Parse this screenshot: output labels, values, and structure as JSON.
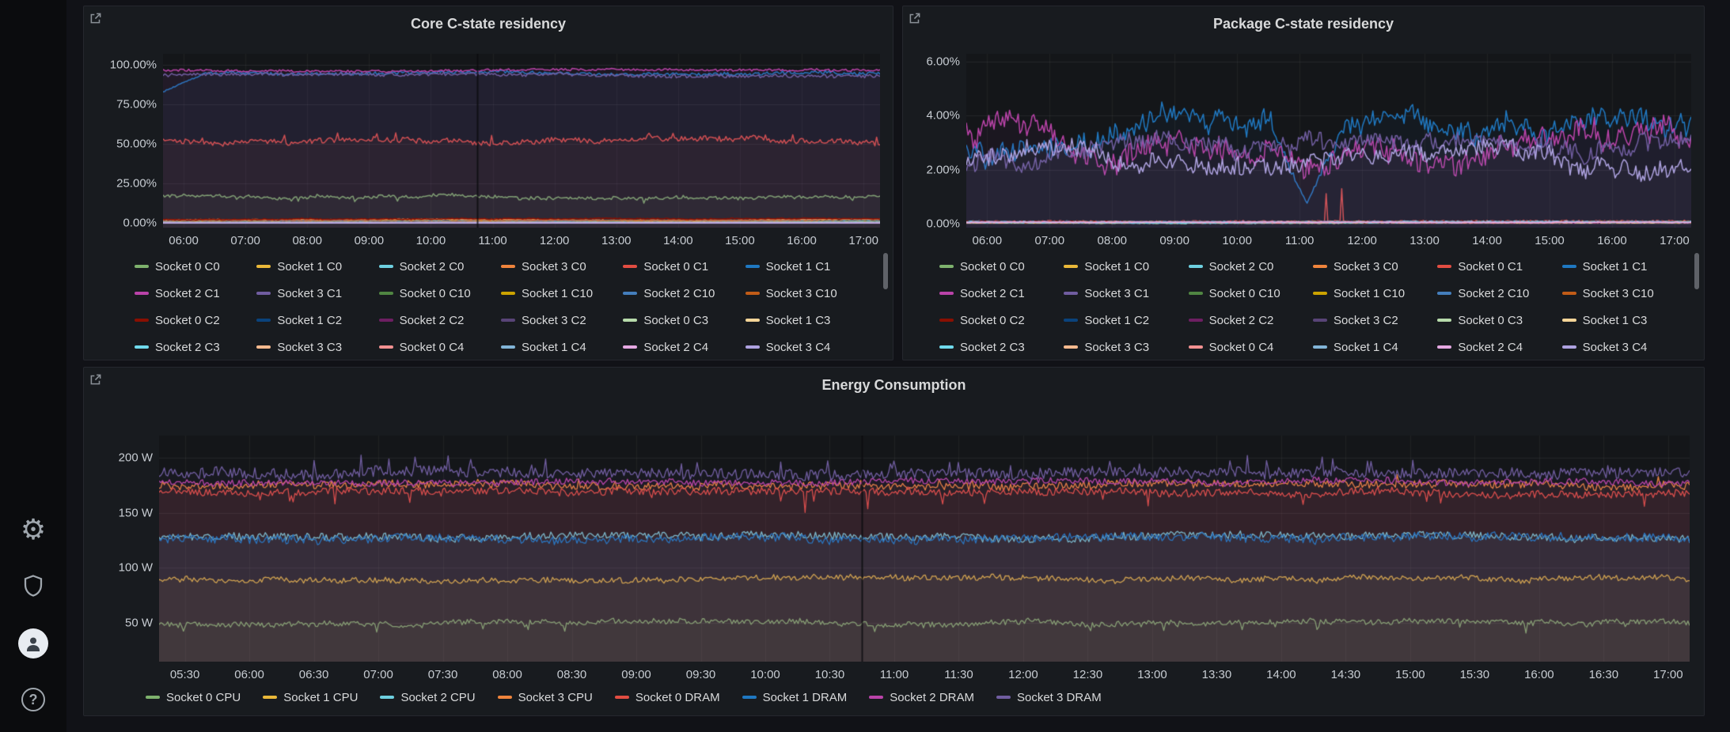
{
  "app": {
    "theme": {
      "page_bg": "#111217",
      "panel_bg": "#181b1f",
      "plot_bg": "#141619",
      "text": "#d8d9da",
      "tick_text": "#c7ccd2",
      "sidebar_bg": "#0b0c0e"
    }
  },
  "sidebar": {
    "items": [
      {
        "icon": "gear-icon",
        "label": "settings"
      },
      {
        "icon": "shield-icon",
        "label": "security"
      },
      {
        "icon": "avatar-icon",
        "label": "profile"
      },
      {
        "icon": "help-icon",
        "label": "help"
      }
    ]
  },
  "chart_data": [
    {
      "id": "core",
      "type": "line",
      "title": "Core C-state residency",
      "legend_position": "bottom",
      "grid": true,
      "points": 420,
      "line_width": 1.5,
      "fill_alpha": 0.06,
      "walk_step": 0.2,
      "x_range_minutes": [
        340,
        1036
      ],
      "annotation_x_minutes": 645,
      "ylim": [
        -3,
        107
      ],
      "y_ticks": [
        {
          "v": 100,
          "label": "100.00%"
        },
        {
          "v": 75,
          "label": "75.00%"
        },
        {
          "v": 50,
          "label": "50.00%"
        },
        {
          "v": 25,
          "label": "25.00%"
        },
        {
          "v": 0,
          "label": "0.00%"
        }
      ],
      "x_ticks": [
        {
          "m": 360,
          "label": "06:00"
        },
        {
          "m": 420,
          "label": "07:00"
        },
        {
          "m": 480,
          "label": "08:00"
        },
        {
          "m": 540,
          "label": "09:00"
        },
        {
          "m": 600,
          "label": "10:00"
        },
        {
          "m": 660,
          "label": "11:00"
        },
        {
          "m": 720,
          "label": "12:00"
        },
        {
          "m": 780,
          "label": "13:00"
        },
        {
          "m": 840,
          "label": "14:00"
        },
        {
          "m": 900,
          "label": "15:00"
        },
        {
          "m": 960,
          "label": "16:00"
        },
        {
          "m": 1020,
          "label": "17:00"
        }
      ],
      "series": [
        {
          "name": "Socket 0 C0",
          "color": "#7EB26D",
          "base": 17,
          "amp": 1.0,
          "walk": 1.5,
          "min": 12.5,
          "max": 19.5,
          "fill": true,
          "spikes": {
            "prob": 0.02,
            "mag": -3
          }
        },
        {
          "name": "Socket 1 C0",
          "color": "#EAB839",
          "base": 1.6,
          "amp": 0.25,
          "walk": 0.3
        },
        {
          "name": "Socket 2 C0",
          "color": "#6ED0E0",
          "base": 1.2,
          "amp": 0.2,
          "walk": 0.3
        },
        {
          "name": "Socket 3 C0",
          "color": "#EF843C",
          "base": 2.0,
          "amp": 0.3,
          "walk": 0.4
        },
        {
          "name": "Socket 0 C1",
          "color": "#E24D42",
          "base": 52,
          "amp": 1.6,
          "walk": 2.0,
          "min": 47,
          "max": 60,
          "fill": true,
          "spikes": {
            "prob": 0.05,
            "mag": 4
          }
        },
        {
          "name": "Socket 1 C1",
          "color": "#1F78C1",
          "base": 95,
          "amp": 1.0,
          "walk": 1.0,
          "min": 82,
          "max": 97.5,
          "fill": true,
          "ramp": {
            "from": 83,
            "until": 0.06
          }
        },
        {
          "name": "Socket 2 C1",
          "color": "#BA43A9",
          "base": 96.5,
          "amp": 0.7,
          "walk": 0.6,
          "min": 92,
          "max": 98,
          "fill": true
        },
        {
          "name": "Socket 3 C1",
          "color": "#705DA0",
          "base": 93.5,
          "amp": 1.1,
          "walk": 0.8,
          "min": 90,
          "max": 96.5,
          "fill": true
        },
        {
          "name": "Socket 0 C10",
          "color": "#508642",
          "base": 0.9,
          "amp": 0.15,
          "walk": 0.2
        },
        {
          "name": "Socket 1 C10",
          "color": "#CCA300",
          "base": 0.7,
          "amp": 0.12,
          "walk": 0.2
        },
        {
          "name": "Socket 2 C10",
          "color": "#447EBC",
          "base": 1.0,
          "amp": 0.15,
          "walk": 0.2
        },
        {
          "name": "Socket 3 C10",
          "color": "#C15C17",
          "base": 0.8,
          "amp": 0.12,
          "walk": 0.2
        },
        {
          "name": "Socket 0 C2",
          "color": "#890F02",
          "base": 2.4,
          "amp": 0.3,
          "walk": 0.5
        },
        {
          "name": "Socket 1 C2",
          "color": "#0A437C",
          "base": 0.5,
          "amp": 0.1,
          "walk": 0.15
        },
        {
          "name": "Socket 2 C2",
          "color": "#6D1F62",
          "base": 0.45,
          "amp": 0.1,
          "walk": 0.15
        },
        {
          "name": "Socket 3 C2",
          "color": "#584477",
          "base": 0.6,
          "amp": 0.1,
          "walk": 0.15
        },
        {
          "name": "Socket 0 C3",
          "color": "#B7DBAB",
          "base": 0.35,
          "amp": 0.08,
          "walk": 0.1
        },
        {
          "name": "Socket 1 C3",
          "color": "#F4D598",
          "base": 0.3,
          "amp": 0.08,
          "walk": 0.1
        },
        {
          "name": "Socket 2 C3",
          "color": "#70DBED",
          "base": 0.25,
          "amp": 0.07,
          "walk": 0.1
        },
        {
          "name": "Socket 3 C3",
          "color": "#F9BA8F",
          "base": 0.2,
          "amp": 0.07,
          "walk": 0.1
        },
        {
          "name": "Socket 0 C4",
          "color": "#F29191",
          "base": 0.15,
          "amp": 0.05,
          "walk": 0.08
        },
        {
          "name": "Socket 1 C4",
          "color": "#82B5D8",
          "base": 0.12,
          "amp": 0.05,
          "walk": 0.08
        },
        {
          "name": "Socket 2 C4",
          "color": "#E5A8E2",
          "base": 0.1,
          "amp": 0.04,
          "walk": 0.06
        },
        {
          "name": "Socket 3 C4",
          "color": "#AEA2E0",
          "base": 0.08,
          "amp": 0.04,
          "walk": 0.06
        }
      ]
    },
    {
      "id": "pkg",
      "type": "line",
      "title": "Package C-state residency",
      "legend_position": "bottom",
      "grid": true,
      "points": 420,
      "line_width": 1.5,
      "fill_alpha": 0.05,
      "walk_step": 0.12,
      "x_range_minutes": [
        340,
        1036
      ],
      "ylim": [
        -0.15,
        6.3
      ],
      "y_ticks": [
        {
          "v": 6,
          "label": "6.00%"
        },
        {
          "v": 4,
          "label": "4.00%"
        },
        {
          "v": 2,
          "label": "2.00%"
        },
        {
          "v": 0,
          "label": "0.00%"
        }
      ],
      "x_ticks": [
        {
          "m": 360,
          "label": "06:00"
        },
        {
          "m": 420,
          "label": "07:00"
        },
        {
          "m": 480,
          "label": "08:00"
        },
        {
          "m": 540,
          "label": "09:00"
        },
        {
          "m": 600,
          "label": "10:00"
        },
        {
          "m": 660,
          "label": "11:00"
        },
        {
          "m": 720,
          "label": "12:00"
        },
        {
          "m": 780,
          "label": "13:00"
        },
        {
          "m": 840,
          "label": "14:00"
        },
        {
          "m": 900,
          "label": "15:00"
        },
        {
          "m": 960,
          "label": "16:00"
        },
        {
          "m": 1020,
          "label": "17:00"
        }
      ],
      "series": [
        {
          "name": "Socket 0 C0",
          "color": "#7EB26D",
          "base": 0.06,
          "amp": 0.03,
          "walk": 0.02
        },
        {
          "name": "Socket 1 C0",
          "color": "#EAB839",
          "base": 0.05,
          "amp": 0.02,
          "walk": 0.02
        },
        {
          "name": "Socket 2 C0",
          "color": "#6ED0E0",
          "base": 0.07,
          "amp": 0.03,
          "walk": 0.02
        },
        {
          "name": "Socket 3 C0",
          "color": "#EF843C",
          "base": 0.05,
          "amp": 0.02,
          "walk": 0.02
        },
        {
          "name": "Socket 0 C1",
          "color": "#E24D42",
          "base": 0.06,
          "amp": 0.04,
          "walk": 0.03,
          "min": 0,
          "spikes": {
            "prob": 0.012,
            "mag": 1.1
          }
        },
        {
          "name": "Socket 1 C1",
          "color": "#1F78C1",
          "base": 2.9,
          "amp": 0.35,
          "walk": 1.3,
          "min": 0.6,
          "max": 4.6,
          "fill": true,
          "dip": {
            "at": 0.47,
            "width": 0.05,
            "to": 0.75
          }
        },
        {
          "name": "Socket 2 C1",
          "color": "#BA43A9",
          "base": 3.4,
          "amp": 0.4,
          "walk": 1.4,
          "min": 1.4,
          "max": 5.2,
          "fill": true
        },
        {
          "name": "Socket 3 C1",
          "color": "#705DA0",
          "base": 2.3,
          "amp": 0.3,
          "walk": 0.9,
          "min": 1.3,
          "max": 3.7,
          "fill": true
        },
        {
          "name": "Socket 0 C10",
          "color": "#508642",
          "base": 0.05,
          "amp": 0.02,
          "walk": 0.02
        },
        {
          "name": "Socket 1 C10",
          "color": "#CCA300",
          "base": 0.05,
          "amp": 0.02,
          "walk": 0.02
        },
        {
          "name": "Socket 2 C10",
          "color": "#447EBC",
          "base": 0.06,
          "amp": 0.02,
          "walk": 0.02
        },
        {
          "name": "Socket 3 C10",
          "color": "#C15C17",
          "base": 0.05,
          "amp": 0.02,
          "walk": 0.02
        },
        {
          "name": "Socket 0 C2",
          "color": "#890F02",
          "base": 0.07,
          "amp": 0.03,
          "walk": 0.02
        },
        {
          "name": "Socket 1 C2",
          "color": "#0A437C",
          "base": 0.05,
          "amp": 0.02,
          "walk": 0.02
        },
        {
          "name": "Socket 2 C2",
          "color": "#6D1F62",
          "base": 0.05,
          "amp": 0.02,
          "walk": 0.02
        },
        {
          "name": "Socket 3 C2",
          "color": "#584477",
          "base": 0.06,
          "amp": 0.02,
          "walk": 0.02
        },
        {
          "name": "Socket 0 C3",
          "color": "#B7DBAB",
          "base": 0.04,
          "amp": 0.02,
          "walk": 0.02
        },
        {
          "name": "Socket 1 C3",
          "color": "#F4D598",
          "base": 0.04,
          "amp": 0.02,
          "walk": 0.02
        },
        {
          "name": "Socket 2 C3",
          "color": "#70DBED",
          "base": 0.04,
          "amp": 0.02,
          "walk": 0.02
        },
        {
          "name": "Socket 3 C3",
          "color": "#F9BA8F",
          "base": 0.04,
          "amp": 0.02,
          "walk": 0.02
        },
        {
          "name": "Socket 0 C4",
          "color": "#F29191",
          "base": 0.05,
          "amp": 0.02,
          "walk": 0.02
        },
        {
          "name": "Socket 1 C4",
          "color": "#82B5D8",
          "base": 0.06,
          "amp": 0.02,
          "walk": 0.02
        },
        {
          "name": "Socket 2 C4",
          "color": "#E5A8E2",
          "base": 0.05,
          "amp": 0.02,
          "walk": 0.02
        },
        {
          "name": "Socket 3 C4",
          "color": "#AEA2E0",
          "base": 2.35,
          "amp": 0.3,
          "walk": 0.8,
          "min": 1.5,
          "max": 3.3,
          "fill": true
        }
      ]
    },
    {
      "id": "energy",
      "type": "line",
      "title": "Energy Consumption",
      "legend_position": "bottom",
      "grid": true,
      "points": 880,
      "line_width": 1.3,
      "fill_alpha": 0.055,
      "walk_step": 0.25,
      "x_range_minutes": [
        318,
        1030
      ],
      "annotation_x_minutes": 645,
      "ylim": [
        15,
        220
      ],
      "y_ticks": [
        {
          "v": 200,
          "label": "200 W"
        },
        {
          "v": 150,
          "label": "150 W"
        },
        {
          "v": 100,
          "label": "100 W"
        },
        {
          "v": 50,
          "label": "50 W"
        }
      ],
      "x_ticks": [
        {
          "m": 330,
          "label": "05:30"
        },
        {
          "m": 360,
          "label": "06:00"
        },
        {
          "m": 390,
          "label": "06:30"
        },
        {
          "m": 420,
          "label": "07:00"
        },
        {
          "m": 450,
          "label": "07:30"
        },
        {
          "m": 480,
          "label": "08:00"
        },
        {
          "m": 510,
          "label": "08:30"
        },
        {
          "m": 540,
          "label": "09:00"
        },
        {
          "m": 570,
          "label": "09:30"
        },
        {
          "m": 600,
          "label": "10:00"
        },
        {
          "m": 630,
          "label": "10:30"
        },
        {
          "m": 660,
          "label": "11:00"
        },
        {
          "m": 690,
          "label": "11:30"
        },
        {
          "m": 720,
          "label": "12:00"
        },
        {
          "m": 750,
          "label": "12:30"
        },
        {
          "m": 780,
          "label": "13:00"
        },
        {
          "m": 810,
          "label": "13:30"
        },
        {
          "m": 840,
          "label": "14:00"
        },
        {
          "m": 870,
          "label": "14:30"
        },
        {
          "m": 900,
          "label": "15:00"
        },
        {
          "m": 930,
          "label": "15:30"
        },
        {
          "m": 960,
          "label": "16:00"
        },
        {
          "m": 990,
          "label": "16:30"
        },
        {
          "m": 1020,
          "label": "17:00"
        }
      ],
      "series": [
        {
          "name": "Socket 0 CPU",
          "color": "#7EB26D",
          "base": 50,
          "amp": 2.5,
          "walk": 2,
          "min": 40,
          "max": 60,
          "fill": true,
          "spikes": {
            "prob": 0.02,
            "mag": -7
          }
        },
        {
          "name": "Socket 1 CPU",
          "color": "#EAB839",
          "base": 90,
          "amp": 2.5,
          "walk": 2,
          "min": 80,
          "max": 100,
          "fill": true
        },
        {
          "name": "Socket 2 CPU",
          "color": "#6ED0E0",
          "base": 128,
          "amp": 3.5,
          "walk": 2,
          "min": 116,
          "max": 140,
          "fill": true
        },
        {
          "name": "Socket 3 CPU",
          "color": "#EF843C",
          "base": 175,
          "amp": 3.5,
          "walk": 2,
          "min": 162,
          "max": 190,
          "fill": true,
          "spikes": {
            "prob": 0.02,
            "mag": 6
          }
        },
        {
          "name": "Socket 0 DRAM",
          "color": "#E24D42",
          "base": 168,
          "amp": 3.5,
          "walk": 2,
          "min": 148,
          "max": 180,
          "fill": true,
          "spikes": {
            "prob": 0.02,
            "mag": -14
          }
        },
        {
          "name": "Socket 1 DRAM",
          "color": "#1F78C1",
          "base": 127,
          "amp": 4,
          "walk": 2,
          "min": 114,
          "max": 140,
          "fill": true
        },
        {
          "name": "Socket 2 DRAM",
          "color": "#BA43A9",
          "base": 178,
          "amp": 3,
          "walk": 1.5,
          "min": 168,
          "max": 190,
          "fill": true
        },
        {
          "name": "Socket 3 DRAM",
          "color": "#705DA0",
          "base": 186,
          "amp": 5,
          "walk": 2,
          "min": 172,
          "max": 207,
          "fill": true,
          "spikes": {
            "prob": 0.05,
            "mag": 10
          }
        }
      ]
    }
  ]
}
